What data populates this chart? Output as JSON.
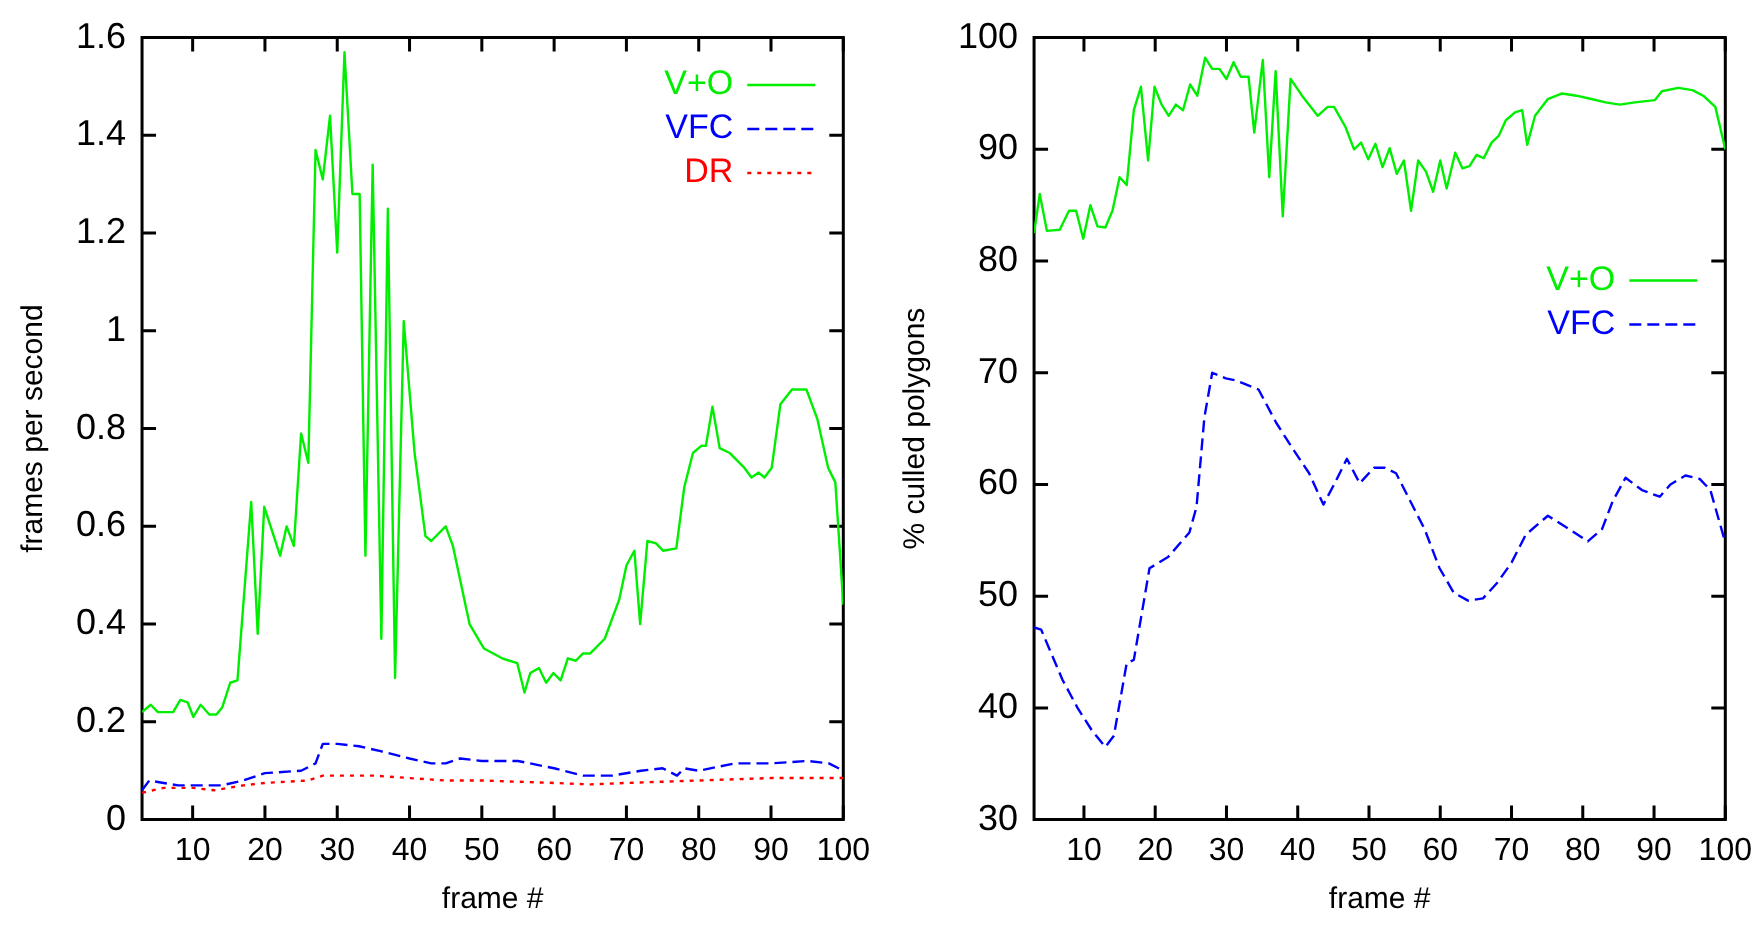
{
  "chart_data": [
    {
      "type": "line",
      "xlabel": "frame #",
      "ylabel": "frames per second",
      "xlim": [
        3,
        100
      ],
      "xticks": [
        10,
        20,
        30,
        40,
        50,
        60,
        70,
        80,
        90,
        100
      ],
      "ylim": [
        0,
        1.6
      ],
      "yticks": [
        0,
        0.2,
        0.4,
        0.6,
        0.8,
        1,
        1.2,
        1.4,
        1.6
      ],
      "legend": "top right",
      "series": [
        {
          "name": "V+O",
          "color": "#00ee00",
          "line_style": "solid",
          "x": [
            3,
            4.2,
            5.2,
            7.3,
            8.3,
            9.3,
            10.1,
            11.1,
            12.3,
            13.3,
            14.1,
            15.2,
            16.2,
            18.1,
            19,
            19.9,
            22.1,
            23,
            24,
            25,
            26,
            27,
            28,
            29,
            30,
            31,
            32.1,
            33.1,
            33.9,
            34.9,
            36.1,
            37,
            38,
            39.2,
            40.7,
            42.2,
            43,
            45,
            46,
            48.3,
            50.3,
            52.8,
            54.9,
            55.9,
            56.7,
            57.9,
            58.9,
            59.9,
            60.9,
            61.9,
            63,
            64,
            65,
            67,
            69,
            70,
            71.1,
            71.9,
            72.9,
            74.1,
            75.1,
            76.9,
            78,
            79.2,
            80.4,
            81,
            81.9,
            82.9,
            84.3,
            86.3,
            87.3,
            88.3,
            89.1,
            90.1,
            91.3,
            92.9,
            94.9,
            96.4,
            97.9,
            98.9,
            100
          ],
          "values": [
            0.22,
            0.235,
            0.22,
            0.22,
            0.245,
            0.24,
            0.21,
            0.235,
            0.215,
            0.215,
            0.23,
            0.28,
            0.285,
            0.65,
            0.38,
            0.64,
            0.54,
            0.6,
            0.56,
            0.79,
            0.73,
            1.37,
            1.31,
            1.44,
            1.16,
            1.57,
            1.28,
            1.28,
            0.54,
            1.34,
            0.37,
            1.25,
            0.29,
            1.02,
            0.75,
            0.58,
            0.57,
            0.6,
            0.56,
            0.4,
            0.35,
            0.33,
            0.32,
            0.26,
            0.3,
            0.31,
            0.28,
            0.3,
            0.285,
            0.33,
            0.325,
            0.34,
            0.34,
            0.37,
            0.45,
            0.52,
            0.55,
            0.4,
            0.57,
            0.565,
            0.55,
            0.555,
            0.68,
            0.75,
            0.765,
            0.765,
            0.845,
            0.76,
            0.75,
            0.72,
            0.7,
            0.71,
            0.7,
            0.72,
            0.85,
            0.88,
            0.88,
            0.82,
            0.72,
            0.69,
            0.44
          ]
        },
        {
          "name": "VFC",
          "color": "#0000ff",
          "line_style": "dashed",
          "x": [
            3,
            4,
            6,
            8,
            10,
            14,
            17,
            20,
            25,
            27,
            28,
            30,
            33,
            36,
            40,
            43,
            45,
            47,
            50,
            55,
            60,
            64,
            68,
            72,
            75,
            77,
            78,
            80,
            85,
            90,
            95,
            98,
            100
          ],
          "values": [
            0.06,
            0.08,
            0.075,
            0.07,
            0.07,
            0.07,
            0.08,
            0.095,
            0.1,
            0.115,
            0.155,
            0.155,
            0.15,
            0.14,
            0.125,
            0.115,
            0.115,
            0.125,
            0.12,
            0.12,
            0.105,
            0.09,
            0.09,
            0.1,
            0.105,
            0.09,
            0.105,
            0.1,
            0.115,
            0.115,
            0.12,
            0.115,
            0.1
          ]
        },
        {
          "name": "DR",
          "color": "#ff0000",
          "line_style": "dotted",
          "x": [
            3,
            6,
            10,
            13,
            17,
            20,
            26,
            28,
            30,
            35,
            40,
            45,
            50,
            60,
            65,
            70,
            80,
            90,
            100
          ],
          "values": [
            0.055,
            0.065,
            0.065,
            0.06,
            0.07,
            0.075,
            0.08,
            0.09,
            0.09,
            0.09,
            0.085,
            0.08,
            0.08,
            0.075,
            0.072,
            0.075,
            0.08,
            0.085,
            0.085
          ]
        }
      ]
    },
    {
      "type": "line",
      "xlabel": "frame #",
      "ylabel": "% culled polygons",
      "xlim": [
        3,
        100
      ],
      "xticks": [
        10,
        20,
        30,
        40,
        50,
        60,
        70,
        80,
        90,
        100
      ],
      "ylim": [
        30,
        100
      ],
      "yticks": [
        30,
        40,
        50,
        60,
        70,
        80,
        90,
        100
      ],
      "legend": "right",
      "series": [
        {
          "name": "V+O",
          "color": "#00ee00",
          "line_style": "solid",
          "x": [
            3,
            3.8,
            4.8,
            6.6,
            7.9,
            8.9,
            9.9,
            10.9,
            11.9,
            13,
            14,
            15,
            16,
            17,
            18,
            19,
            19.9,
            20.9,
            21.9,
            22.9,
            23.9,
            24.9,
            25.9,
            27,
            28,
            29,
            30,
            31,
            32,
            33.1,
            33.9,
            35.1,
            36,
            36.9,
            37.9,
            39,
            40.6,
            42.8,
            44.2,
            45.1,
            46.7,
            47.9,
            48.9,
            49.9,
            50.9,
            51.9,
            52.9,
            53.9,
            54.9,
            55.9,
            56.9,
            58,
            59,
            60,
            60.9,
            62.1,
            63.1,
            64.1,
            65.1,
            66.1,
            67.2,
            68.2,
            69.2,
            70.5,
            71.5,
            72.2,
            73.3,
            75.1,
            77.1,
            79.1,
            81.2,
            83.2,
            85.2,
            87.3,
            90.1,
            91.1,
            93.4,
            95.4,
            96.9,
            98.6,
            100
          ],
          "values": [
            82.5,
            86,
            82.7,
            82.8,
            84.5,
            84.5,
            82,
            85,
            83.1,
            83,
            84.5,
            87.5,
            86.8,
            93.5,
            95.6,
            89,
            95.6,
            94,
            93,
            94,
            93.5,
            95.8,
            94.8,
            98.2,
            97.2,
            97.2,
            96.3,
            97.8,
            96.5,
            96.5,
            91.5,
            98,
            87.5,
            97,
            84,
            96.3,
            94.8,
            93,
            93.8,
            93.8,
            92,
            90,
            90.6,
            89.1,
            90.5,
            88.4,
            90.1,
            87.8,
            89,
            84.5,
            89,
            88,
            86.2,
            89,
            86.5,
            89.7,
            88.3,
            88.5,
            89.5,
            89.2,
            90.6,
            91.2,
            92.6,
            93.3,
            93.5,
            90.4,
            93,
            94.5,
            95,
            94.8,
            94.5,
            94.2,
            94,
            94.2,
            94.4,
            95.2,
            95.5,
            95.3,
            94.8,
            93.8,
            90
          ]
        },
        {
          "name": "VFC",
          "color": "#0000ff",
          "line_style": "dashed",
          "x": [
            3,
            4,
            7,
            9.1,
            11.1,
            13,
            14.2,
            16,
            17,
            19.2,
            21.8,
            24.8,
            25.8,
            26.9,
            28,
            29.9,
            31.4,
            34.5,
            37,
            39.5,
            41.6,
            43.6,
            45.1,
            46.9,
            48.7,
            50.7,
            52.2,
            53.8,
            55.8,
            57.8,
            59.9,
            61.9,
            63.9,
            66,
            68,
            70,
            72,
            75.1,
            78.1,
            80.7,
            82.7,
            84.2,
            86,
            88.3,
            90.8,
            92.3,
            94.4,
            96.4,
            97.9,
            100
          ],
          "values": [
            47.2,
            47,
            42.5,
            40,
            38,
            36.5,
            37.5,
            44,
            44.3,
            52.5,
            53.5,
            55.7,
            58,
            66,
            70,
            69.5,
            69.3,
            68.5,
            65.5,
            63,
            61,
            58.2,
            60,
            62.3,
            60.1,
            61.5,
            61.5,
            61,
            58.5,
            56,
            52.5,
            50.3,
            49.6,
            49.8,
            51.2,
            53,
            55.5,
            57.2,
            56,
            54.9,
            56,
            58.5,
            60.6,
            59.5,
            58.9,
            60,
            60.8,
            60.5,
            59.5,
            54.8
          ]
        }
      ]
    }
  ]
}
